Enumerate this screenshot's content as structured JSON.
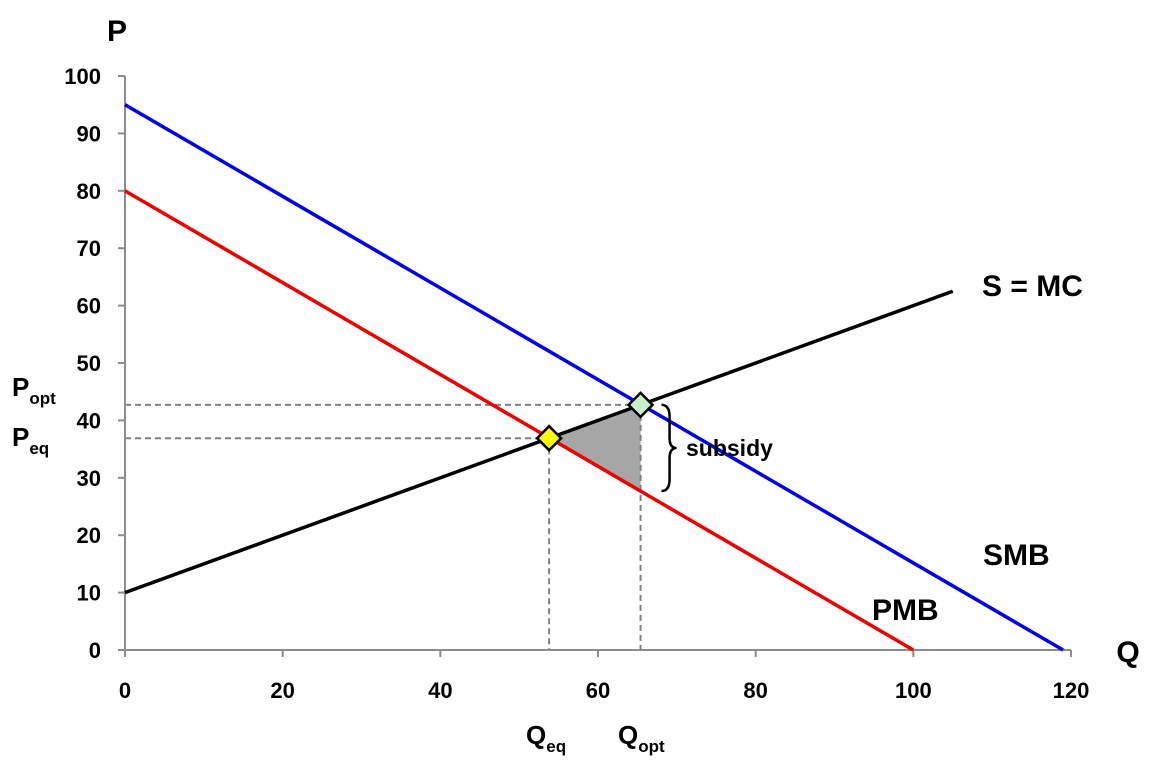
{
  "chart_data": {
    "type": "line",
    "xlabel": "Q",
    "ylabel": "P",
    "xlim": [
      0,
      120
    ],
    "ylim": [
      0,
      100
    ],
    "x_ticks": [
      0,
      20,
      40,
      60,
      80,
      100,
      120
    ],
    "y_ticks": [
      0,
      10,
      20,
      30,
      40,
      50,
      60,
      70,
      80,
      90,
      100
    ],
    "grid": false,
    "series": [
      {
        "name": "S = MC",
        "color": "#000000",
        "points": [
          [
            0,
            10
          ],
          [
            105,
            62.5
          ]
        ]
      },
      {
        "name": "SMB",
        "color": "#0000ee",
        "points": [
          [
            0,
            95
          ],
          [
            119,
            0
          ]
        ]
      },
      {
        "name": "PMB",
        "color": "#ee0000",
        "points": [
          [
            0,
            80
          ],
          [
            100,
            0
          ]
        ]
      }
    ],
    "equilibrium": {
      "q": 53.8,
      "p": 36.9,
      "color": "#ffff00"
    },
    "optimum": {
      "q": 65.4,
      "p": 42.7,
      "color": "#c6efce"
    },
    "shaded_triangle": {
      "points": [
        [
          53.8,
          36.9
        ],
        [
          65.4,
          42.7
        ],
        [
          65.4,
          27.7
        ]
      ],
      "color": "#a6a6a6"
    },
    "subsidy_range": [
      27.7,
      42.7
    ],
    "annotations": {
      "p_opt": "P",
      "p_opt_sub": "opt",
      "p_eq": "P",
      "p_eq_sub": "eq",
      "q_eq": "Q",
      "q_eq_sub": "eq",
      "q_opt": "Q",
      "q_opt_sub": "opt",
      "subsidy": "subsidy"
    }
  }
}
